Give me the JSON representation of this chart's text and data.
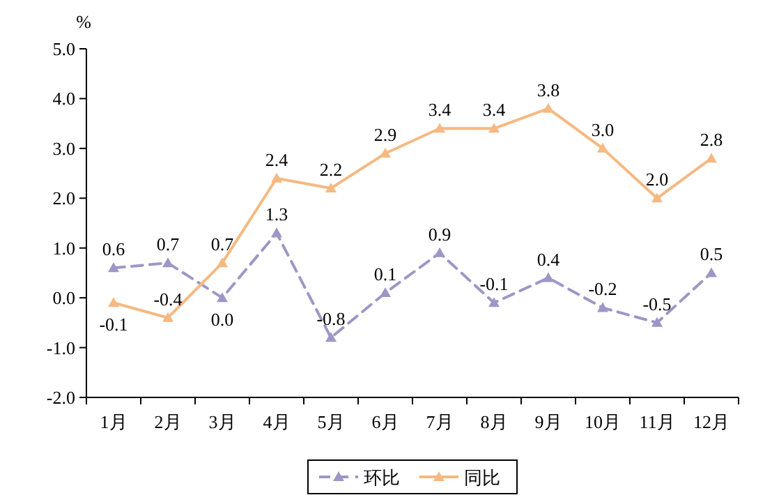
{
  "chart_data": {
    "type": "line",
    "ylabel": "%",
    "categories": [
      "1月",
      "2月",
      "3月",
      "4月",
      "5月",
      "6月",
      "7月",
      "8月",
      "9月",
      "10月",
      "11月",
      "12月"
    ],
    "series": [
      {
        "name": "环比",
        "color": "#9f96c6",
        "line_style": "dashed",
        "values": [
          0.6,
          0.7,
          0.0,
          1.3,
          -0.8,
          0.1,
          0.9,
          -0.1,
          0.4,
          -0.2,
          -0.5,
          0.5
        ],
        "value_labels": [
          "0.6",
          "0.7",
          "0.0",
          "1.3",
          "-0.8",
          "0.1",
          "0.9",
          "-0.1",
          "0.4",
          "-0.2",
          "-0.5",
          "0.5"
        ]
      },
      {
        "name": "同比",
        "color": "#f5b982",
        "line_style": "solid",
        "values": [
          -0.1,
          -0.4,
          0.7,
          2.4,
          2.2,
          2.9,
          3.4,
          3.4,
          3.8,
          3.0,
          2.0,
          2.8
        ],
        "value_labels": [
          "-0.1",
          "-0.4",
          "0.7",
          "2.4",
          "2.2",
          "2.9",
          "3.4",
          "3.4",
          "3.8",
          "3.0",
          "2.0",
          "2.8"
        ]
      }
    ],
    "ylim": [
      -2,
      5
    ],
    "yticks": [
      {
        "value": -2,
        "label": "-2.0"
      },
      {
        "value": -1,
        "label": "-1.0"
      },
      {
        "value": 0,
        "label": "0.0"
      },
      {
        "value": 1,
        "label": "1.0"
      },
      {
        "value": 2,
        "label": "2.0"
      },
      {
        "value": 3,
        "label": "3.0"
      },
      {
        "value": 4,
        "label": "4.0"
      },
      {
        "value": 5,
        "label": "5.0"
      }
    ],
    "marker": "triangle",
    "legend": "bottom",
    "grid": false
  }
}
